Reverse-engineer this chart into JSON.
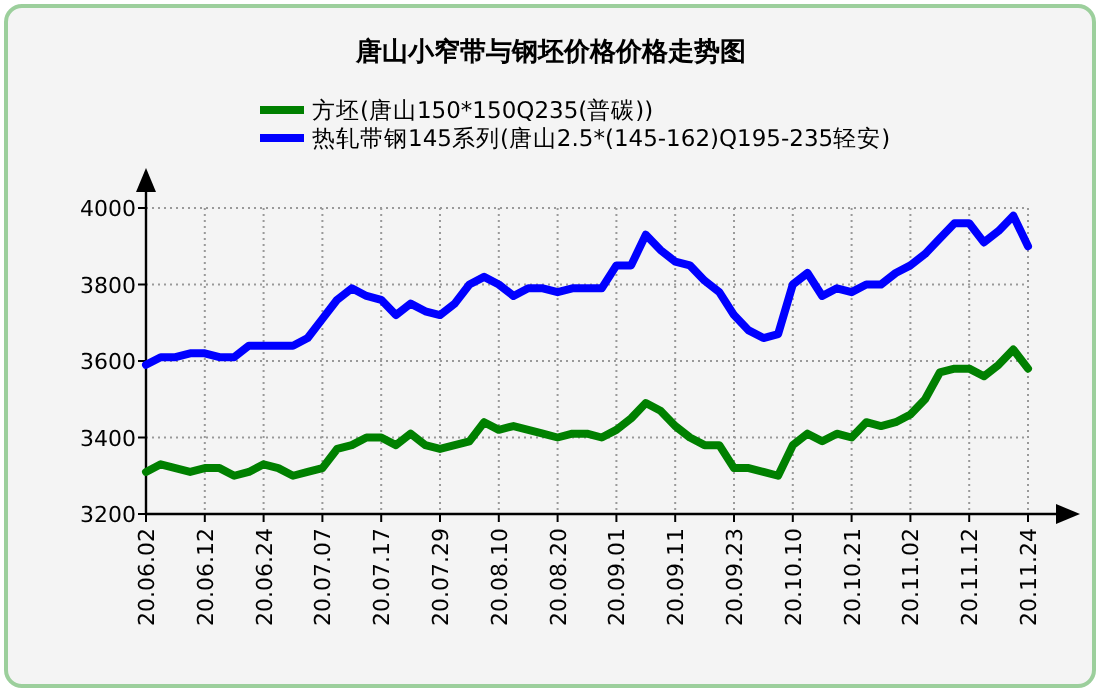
{
  "chart_data": {
    "type": "line",
    "title": "唐山小窄带与钢坯价格价格走势图",
    "categories": [
      "20.06.02",
      null,
      null,
      null,
      "20.06.12",
      null,
      null,
      null,
      "20.06.24",
      null,
      null,
      null,
      "20.07.07",
      null,
      null,
      null,
      "20.07.17",
      null,
      null,
      null,
      "20.07.29",
      null,
      null,
      null,
      "20.08.10",
      null,
      null,
      null,
      "20.08.20",
      null,
      null,
      null,
      "20.09.01",
      null,
      null,
      null,
      "20.09.11",
      null,
      null,
      null,
      "20.09.23",
      null,
      null,
      null,
      "20.10.10",
      null,
      null,
      null,
      "20.10.21",
      null,
      null,
      null,
      "20.11.02",
      null,
      null,
      null,
      "20.11.12",
      null,
      null,
      null,
      "20.11.24"
    ],
    "series": [
      {
        "name": "方坯(唐山150*150Q235(普碳))",
        "color": "#008000",
        "values": [
          3310,
          3330,
          3320,
          3310,
          3320,
          3320,
          3300,
          3310,
          3330,
          3320,
          3300,
          3310,
          3320,
          3370,
          3380,
          3400,
          3400,
          3380,
          3410,
          3380,
          3370,
          3380,
          3390,
          3440,
          3420,
          3430,
          3420,
          3410,
          3400,
          3410,
          3410,
          3400,
          3420,
          3450,
          3490,
          3470,
          3430,
          3400,
          3380,
          3380,
          3320,
          3320,
          3310,
          3300,
          3380,
          3410,
          3390,
          3410,
          3400,
          3440,
          3430,
          3440,
          3460,
          3500,
          3570,
          3580,
          3580,
          3560,
          3590,
          3630,
          3580
        ]
      },
      {
        "name": "热轧带钢145系列(唐山2.5*(145-162)Q195-235轻安)",
        "color": "#0000ff",
        "values": [
          3590,
          3610,
          3610,
          3620,
          3620,
          3610,
          3610,
          3640,
          3640,
          3640,
          3640,
          3660,
          3710,
          3760,
          3790,
          3770,
          3760,
          3720,
          3750,
          3730,
          3720,
          3750,
          3800,
          3820,
          3800,
          3770,
          3790,
          3790,
          3780,
          3790,
          3790,
          3790,
          3850,
          3850,
          3930,
          3890,
          3860,
          3850,
          3810,
          3780,
          3720,
          3680,
          3660,
          3670,
          3800,
          3830,
          3770,
          3790,
          3780,
          3800,
          3800,
          3830,
          3850,
          3880,
          3920,
          3960,
          3960,
          3910,
          3940,
          3980,
          3900
        ]
      }
    ],
    "ylim": [
      3200,
      4000
    ],
    "yticks": [
      3200,
      3400,
      3600,
      3800,
      4000
    ],
    "grid": true,
    "legend": "top"
  }
}
